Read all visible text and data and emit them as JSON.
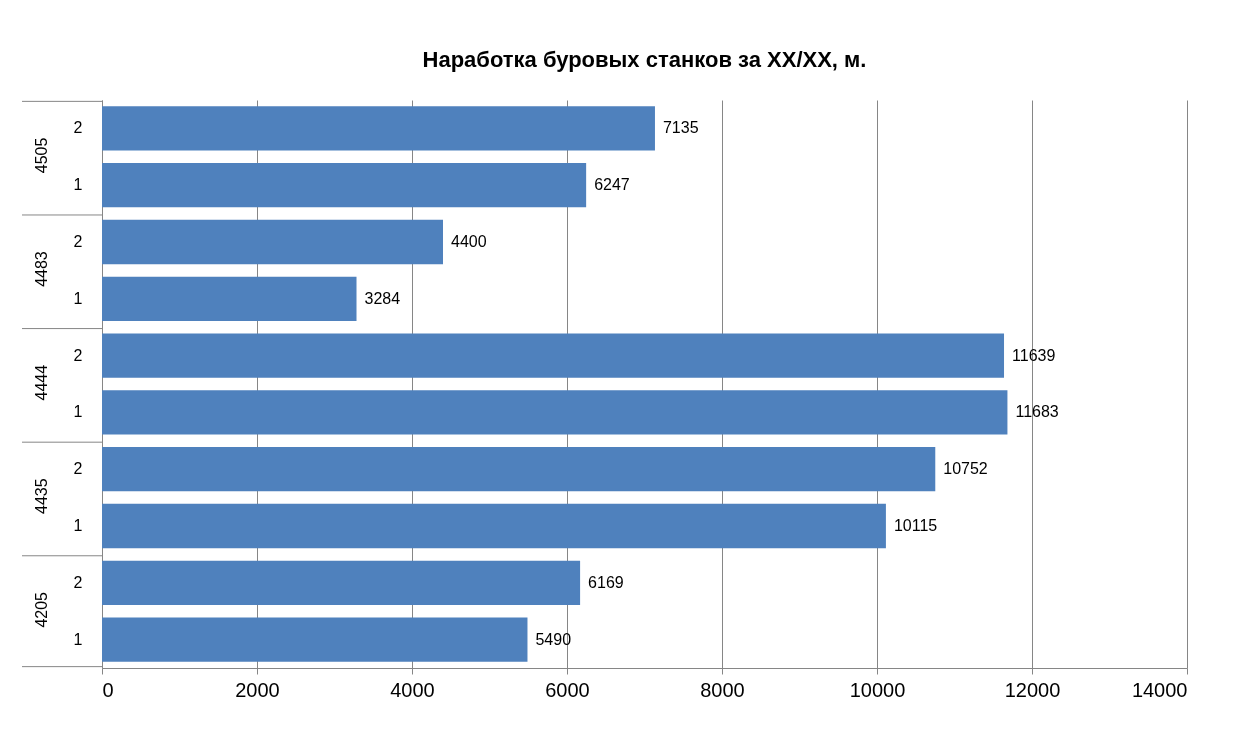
{
  "chart_data": {
    "type": "bar",
    "orientation": "horizontal",
    "title": "Наработка буровых станков за XX/XX, м.",
    "categories": [
      "2",
      "1",
      "2",
      "1",
      "2",
      "1",
      "2",
      "1",
      "2",
      "1"
    ],
    "values": [
      7135,
      6247,
      4400,
      3284,
      11639,
      11683,
      10752,
      10115,
      6169,
      5490
    ],
    "color": "#4f81bd",
    "data_labels": true,
    "annotations": [
      "4505",
      "4483",
      "4444",
      "4435",
      "4205"
    ],
    "xlim": [
      0,
      14000
    ],
    "xticks": [
      0,
      2000,
      4000,
      6000,
      8000,
      10000,
      12000,
      14000
    ],
    "grid": "x"
  }
}
